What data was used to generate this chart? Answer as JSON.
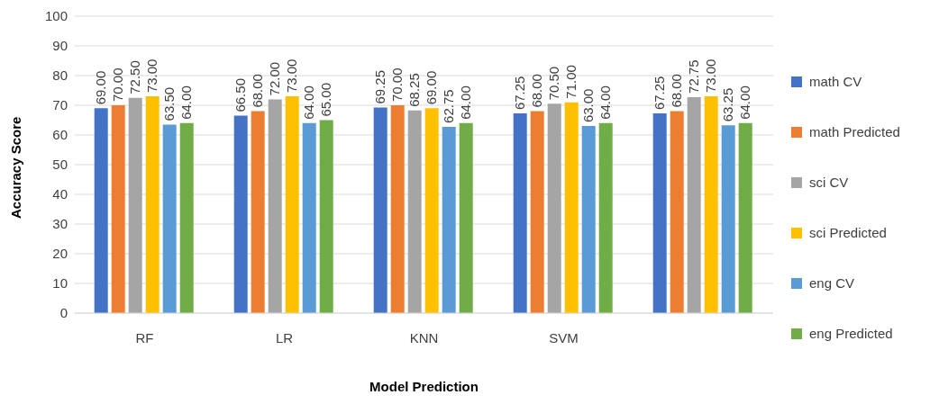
{
  "chart_data": {
    "type": "bar",
    "xlabel": "Model Prediction",
    "ylabel": "Accuracy Score",
    "categories": [
      "RF",
      "LR",
      "KNN",
      "SVM",
      null
    ],
    "series": [
      {
        "name": "math CV",
        "color": "#4472c4",
        "values": [
          69,
          66.5,
          69.25,
          67.25,
          67.25
        ],
        "value_labels": [
          "69.00",
          "66.50",
          "69.25",
          "67.25",
          "67.25"
        ]
      },
      {
        "name": "math Predicted",
        "color": "#ed7d31",
        "values": [
          70,
          68,
          70,
          68,
          68
        ],
        "value_labels": [
          "70.00",
          "68.00",
          "70.00",
          "68.00",
          "68.00"
        ]
      },
      {
        "name": "sci CV",
        "color": "#a5a5a5",
        "values": [
          72.5,
          72,
          68.25,
          70.5,
          72.75
        ],
        "value_labels": [
          "72.50",
          "72.00",
          "68.25",
          "70.50",
          "72.75"
        ]
      },
      {
        "name": "sci Predicted",
        "color": "#ffc000",
        "values": [
          73,
          73,
          69,
          71,
          73
        ],
        "value_labels": [
          "73.00",
          "73.00",
          "69.00",
          "71.00",
          "73.00"
        ]
      },
      {
        "name": "eng CV",
        "color": "#5b9bd5",
        "values": [
          63.5,
          64,
          62.75,
          63,
          63.25
        ],
        "value_labels": [
          "63.50",
          "64.00",
          "62.75",
          "63.00",
          "63.25"
        ]
      },
      {
        "name": "eng Predicted",
        "color": "#70ad47",
        "values": [
          64,
          65,
          64,
          64,
          64
        ],
        "value_labels": [
          "64.00",
          "65.00",
          "64.00",
          "64.00",
          "64.00"
        ]
      }
    ],
    "ylim": [
      0,
      100
    ],
    "yticks": [
      0,
      10,
      20,
      30,
      40,
      50,
      60,
      70,
      80,
      90,
      100
    ],
    "grid": "y",
    "legend": "right"
  }
}
